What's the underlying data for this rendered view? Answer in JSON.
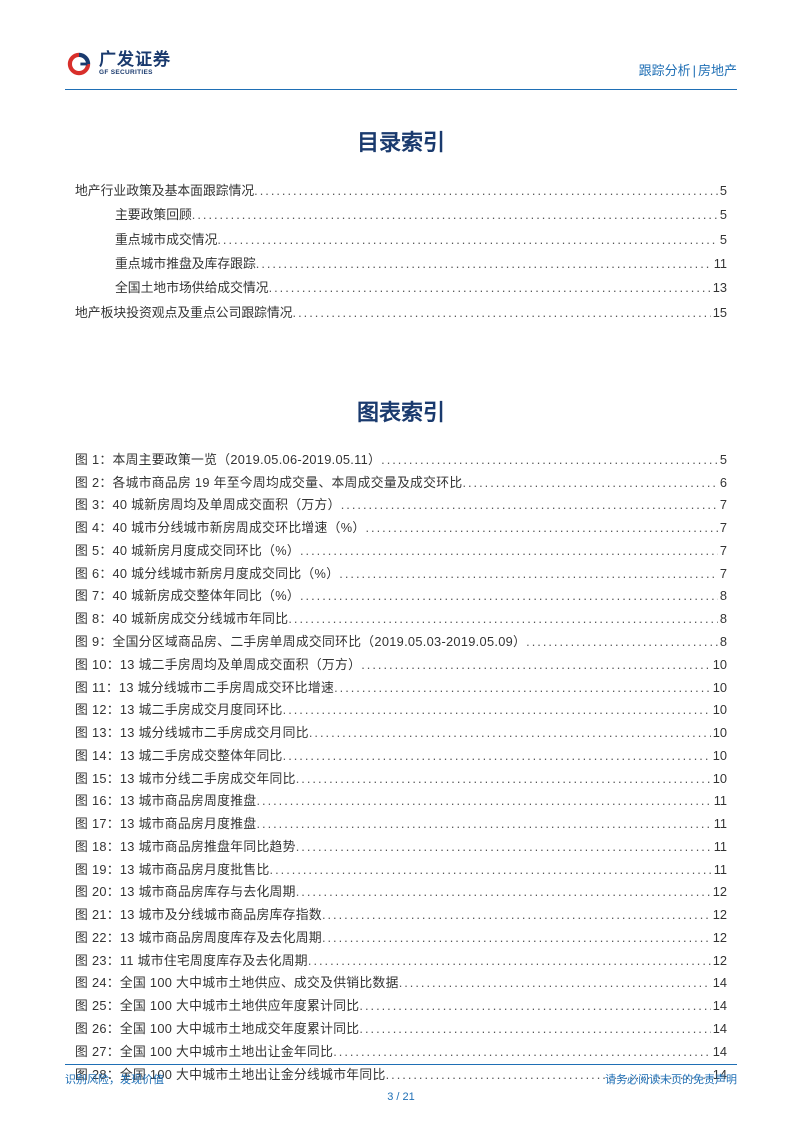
{
  "header": {
    "logo_cn": "广发证券",
    "logo_en": "GF SECURITIES",
    "right_label_a": "跟踪分析",
    "right_label_b": "房地产"
  },
  "toc_title": "目录索引",
  "toc": [
    {
      "level": 1,
      "label": "地产行业政策及基本面跟踪情况",
      "page": "5"
    },
    {
      "level": 2,
      "label": "主要政策回顾",
      "page": "5"
    },
    {
      "level": 2,
      "label": "重点城市成交情况",
      "page": "5"
    },
    {
      "level": 2,
      "label": "重点城市推盘及库存跟踪",
      "page": "11"
    },
    {
      "level": 2,
      "label": "全国土地市场供给成交情况",
      "page": "13"
    },
    {
      "level": 1,
      "label": "地产板块投资观点及重点公司跟踪情况",
      "page": "15"
    }
  ],
  "fig_title": "图表索引",
  "figures": [
    {
      "label": "图 1：本周主要政策一览（2019.05.06-2019.05.11）",
      "page": "5"
    },
    {
      "label": "图 2：各城市商品房 19 年至今周均成交量、本周成交量及成交环比",
      "page": "6"
    },
    {
      "label": "图 3：40 城新房周均及单周成交面积（万方）",
      "page": "7"
    },
    {
      "label": "图 4：40 城市分线城市新房周成交环比增速（%）",
      "page": "7"
    },
    {
      "label": "图 5：40 城新房月度成交同环比（%）",
      "page": "7"
    },
    {
      "label": "图 6：40 城分线城市新房月度成交同比（%）",
      "page": "7"
    },
    {
      "label": "图 7：40 城新房成交整体年同比（%）",
      "page": "8"
    },
    {
      "label": "图 8：40 城新房成交分线城市年同比",
      "page": "8"
    },
    {
      "label": "图 9：全国分区域商品房、二手房单周成交同环比（2019.05.03-2019.05.09）",
      "page": "8"
    },
    {
      "label": "图 10：13 城二手房周均及单周成交面积（万方）",
      "page": "10"
    },
    {
      "label": "图 11：13 城分线城市二手房周成交环比增速",
      "page": "10"
    },
    {
      "label": "图 12：13 城二手房成交月度同环比",
      "page": "10"
    },
    {
      "label": "图 13：13 城分线城市二手房成交月同比",
      "page": "10"
    },
    {
      "label": "图 14：13 城二手房成交整体年同比",
      "page": "10"
    },
    {
      "label": "图 15：13 城市分线二手房成交年同比",
      "page": "10"
    },
    {
      "label": "图 16：13 城市商品房周度推盘",
      "page": "11"
    },
    {
      "label": "图 17：13 城市商品房月度推盘",
      "page": "11"
    },
    {
      "label": "图 18：13 城市商品房推盘年同比趋势",
      "page": "11"
    },
    {
      "label": "图 19：13 城市商品房月度批售比",
      "page": "11"
    },
    {
      "label": "图 20：13 城市商品房库存与去化周期",
      "page": "12"
    },
    {
      "label": "图 21：13 城市及分线城市商品房库存指数",
      "page": "12"
    },
    {
      "label": "图 22：13 城市商品房周度库存及去化周期",
      "page": "12"
    },
    {
      "label": "图 23：11 城市住宅周度库存及去化周期",
      "page": "12"
    },
    {
      "label": "图 24：全国 100 大中城市土地供应、成交及供销比数据",
      "page": "14"
    },
    {
      "label": "图 25：全国 100 大中城市土地供应年度累计同比",
      "page": "14"
    },
    {
      "label": "图 26：全国 100 大中城市土地成交年度累计同比",
      "page": "14"
    },
    {
      "label": "图 27：全国 100 大中城市土地出让金年同比",
      "page": "14"
    },
    {
      "label": "图 28：全国 100 大中城市土地出让金分线城市年同比",
      "page": "14"
    }
  ],
  "footer": {
    "left": "识别风险，发现价值",
    "right": "请务必阅读末页的免责声明",
    "pageno": "3 / 21"
  },
  "colors": {
    "brand_blue": "#1f6fb5",
    "deep_navy": "#1a3a6e",
    "accent_red": "#d82f2b",
    "text": "#333333"
  }
}
